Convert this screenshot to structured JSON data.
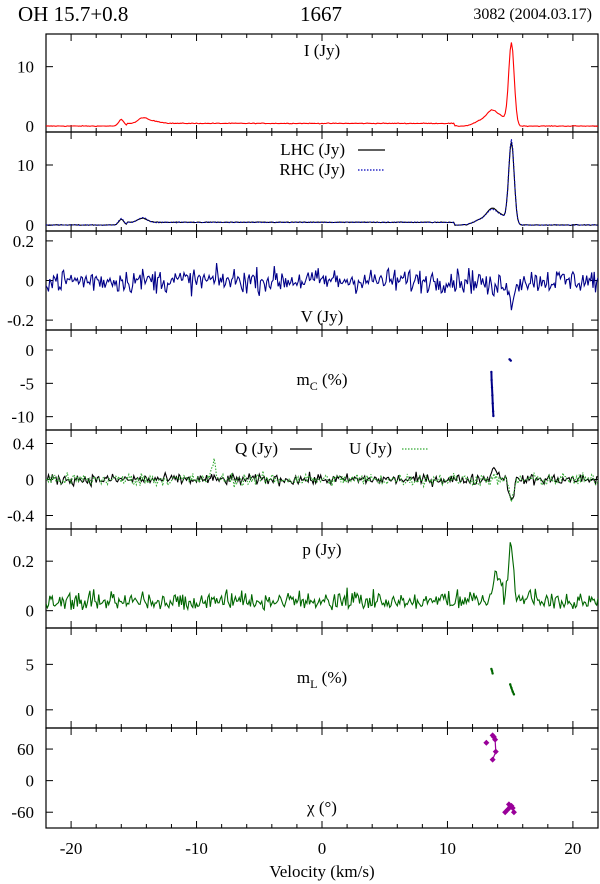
{
  "header": {
    "source": "OH 15.7+0.8",
    "frequency": "1667",
    "observation": "3082 (2004.03.17)"
  },
  "chart_data": {
    "type": "line",
    "x_axis": {
      "label": "Velocity (km/s)",
      "range": [
        -22,
        22
      ],
      "ticks": [
        -20,
        -10,
        0,
        10,
        20
      ],
      "tick_labels": [
        "-20",
        "-10",
        "0",
        "10",
        "20"
      ]
    },
    "colors": {
      "stokes_I": "#ff0000",
      "lhc": "#000000",
      "rhc": "#0000bb",
      "stokes_V": "#000088",
      "m_c": "#000088",
      "stokes_Q": "#000000",
      "stokes_U": "#33aa33",
      "p": "#006600",
      "m_l": "#006600",
      "chi": "#990099"
    },
    "panels": [
      {
        "id": "stokes-i",
        "label": "I (Jy)",
        "ylim": [
          -1,
          15.5
        ],
        "yticks": [
          0,
          10
        ],
        "ytick_labels": [
          "0",
          "10"
        ],
        "series": [
          {
            "key": "I",
            "style": "solid",
            "color_key": "stokes_I",
            "features": [
              {
                "v": 15.1,
                "amp": 14.0,
                "width": 0.22
              },
              {
                "v": 14.4,
                "amp": 1.0,
                "width": 0.3
              },
              {
                "v": 13.6,
                "amp": 2.6,
                "width": 0.45
              },
              {
                "v": 12.6,
                "amp": 0.8,
                "width": 0.5
              },
              {
                "v": -16.0,
                "amp": 1.1,
                "width": 0.2
              },
              {
                "v": -14.3,
                "amp": 0.8,
                "width": 0.35
              },
              {
                "v": -13.5,
                "amp": 0.4,
                "width": 0.6
              }
            ],
            "baseline": [
              {
                "from": -15.5,
                "to": 10.5,
                "level": 0.45
              }
            ],
            "noise": 0.06
          }
        ]
      },
      {
        "id": "lhc-rhc",
        "label": "",
        "ylim": [
          -1,
          15.5
        ],
        "yticks": [
          0,
          10
        ],
        "ytick_labels": [
          "0",
          "10"
        ],
        "legend": [
          {
            "label": "LHC (Jy)",
            "style": "solid",
            "color_key": "lhc"
          },
          {
            "label": "RHC (Jy)",
            "style": "dotted",
            "color_key": "rhc"
          }
        ],
        "series": [
          {
            "key": "LHC",
            "style": "solid",
            "color_key": "lhc",
            "features": [
              {
                "v": 15.1,
                "amp": 13.8,
                "width": 0.22
              },
              {
                "v": 14.4,
                "amp": 1.0,
                "width": 0.3
              },
              {
                "v": 13.6,
                "amp": 2.7,
                "width": 0.45
              },
              {
                "v": 12.6,
                "amp": 0.8,
                "width": 0.5
              },
              {
                "v": -16.0,
                "amp": 1.0,
                "width": 0.2
              },
              {
                "v": -14.3,
                "amp": 0.7,
                "width": 0.35
              }
            ],
            "baseline": [
              {
                "from": -15.5,
                "to": 10.5,
                "level": 0.45
              }
            ],
            "noise": 0.06
          },
          {
            "key": "RHC",
            "style": "dotted",
            "color_key": "rhc",
            "features": [
              {
                "v": 15.1,
                "amp": 14.2,
                "width": 0.22
              },
              {
                "v": 14.4,
                "amp": 1.0,
                "width": 0.3
              },
              {
                "v": 13.6,
                "amp": 2.5,
                "width": 0.45
              },
              {
                "v": 12.6,
                "amp": 0.8,
                "width": 0.5
              },
              {
                "v": -16.0,
                "amp": 1.1,
                "width": 0.2
              },
              {
                "v": -14.3,
                "amp": 0.8,
                "width": 0.35
              }
            ],
            "baseline": [
              {
                "from": -15.5,
                "to": 10.5,
                "level": 0.45
              }
            ],
            "noise": 0.06
          }
        ]
      },
      {
        "id": "stokes-v",
        "label": "V (Jy)",
        "ylim": [
          -0.25,
          0.25
        ],
        "yticks": [
          0.2,
          0,
          -0.2
        ],
        "ytick_labels": [
          "0.2",
          "0",
          "-0.2"
        ],
        "series": [
          {
            "key": "V",
            "style": "solid",
            "color_key": "stokes_V",
            "features": [
              {
                "v": 15.1,
                "amp": -0.15,
                "width": 0.15
              },
              {
                "v": 13.6,
                "amp": -0.05,
                "width": 0.4
              }
            ],
            "baseline": [],
            "noise": 0.06
          }
        ]
      },
      {
        "id": "m-c",
        "label": "m",
        "label_sub": "C",
        "label_tail": " (%)",
        "ylim": [
          -12,
          3
        ],
        "yticks": [
          0,
          -5,
          -10
        ],
        "ytick_labels": [
          "0",
          "-5",
          "-10"
        ],
        "points": [
          {
            "x": 13.5,
            "y": -3.3
          },
          {
            "x": 13.52,
            "y": -4.5
          },
          {
            "x": 13.55,
            "y": -5.6
          },
          {
            "x": 13.58,
            "y": -6.8
          },
          {
            "x": 13.61,
            "y": -8.0
          },
          {
            "x": 13.64,
            "y": -9.2
          },
          {
            "x": 13.66,
            "y": -9.9
          },
          {
            "x": 14.95,
            "y": -1.4
          },
          {
            "x": 15.05,
            "y": -1.6
          }
        ]
      },
      {
        "id": "stokes-qu",
        "label": "",
        "ylim": [
          -0.55,
          0.55
        ],
        "yticks": [
          0.4,
          0,
          -0.4
        ],
        "ytick_labels": [
          "0.4",
          "0",
          "-0.4"
        ],
        "legend": [
          {
            "label": "Q (Jy)",
            "style": "solid",
            "color_key": "stokes_Q"
          },
          {
            "label": "U (Jy)",
            "style": "dotted",
            "color_key": "stokes_U"
          }
        ],
        "series": [
          {
            "key": "Q",
            "style": "solid",
            "color_key": "stokes_Q",
            "features": [
              {
                "v": 15.1,
                "amp": -0.2,
                "width": 0.2
              },
              {
                "v": 13.8,
                "amp": 0.12,
                "width": 0.3
              }
            ],
            "baseline": [],
            "noise": 0.06
          },
          {
            "key": "U",
            "style": "dotted",
            "color_key": "stokes_U",
            "features": [
              {
                "v": 15.1,
                "amp": -0.22,
                "width": 0.2
              },
              {
                "v": -8.6,
                "amp": 0.2,
                "width": 0.15
              }
            ],
            "baseline": [],
            "noise": 0.07
          }
        ]
      },
      {
        "id": "linear-p",
        "label": "p (Jy)",
        "ylim": [
          -0.07,
          0.33
        ],
        "yticks": [
          0.2,
          0
        ],
        "ytick_labels": [
          "0.2",
          "0"
        ],
        "series": [
          {
            "key": "p",
            "style": "solid",
            "color_key": "p",
            "features": [
              {
                "v": 15.05,
                "amp": 0.24,
                "width": 0.18
              },
              {
                "v": 13.9,
                "amp": 0.1,
                "width": 0.3
              }
            ],
            "baseline": [],
            "noise": 0.05,
            "positive_offset": 0.04
          }
        ]
      },
      {
        "id": "m-l",
        "label": "m",
        "label_sub": "L",
        "label_tail": " (%)",
        "ylim": [
          -2,
          9
        ],
        "yticks": [
          5,
          0
        ],
        "ytick_labels": [
          "5",
          "0"
        ],
        "points": [
          {
            "x": 13.5,
            "y": 4.5
          },
          {
            "x": 13.55,
            "y": 4.3
          },
          {
            "x": 13.6,
            "y": 4.0
          },
          {
            "x": 15.0,
            "y": 2.8
          },
          {
            "x": 15.1,
            "y": 2.4
          },
          {
            "x": 15.2,
            "y": 2.0
          },
          {
            "x": 15.3,
            "y": 1.7
          }
        ]
      },
      {
        "id": "chi",
        "label": "χ (°)",
        "ylim": [
          -90,
          100
        ],
        "yticks": [
          60,
          0,
          -60
        ],
        "ytick_labels": [
          "60",
          "0",
          "-60"
        ],
        "markers": true,
        "segments": [
          [
            {
              "x": 13.6,
              "y": 86
            },
            {
              "x": 13.7,
              "y": 83
            },
            {
              "x": 13.8,
              "y": 78
            },
            {
              "x": 13.85,
              "y": 55
            },
            {
              "x": 13.6,
              "y": 40
            }
          ],
          [
            {
              "x": 14.8,
              "y": -55
            },
            {
              "x": 14.9,
              "y": -45
            },
            {
              "x": 15.0,
              "y": -50
            },
            {
              "x": 15.1,
              "y": -48
            },
            {
              "x": 15.2,
              "y": -52
            },
            {
              "x": 15.3,
              "y": -60
            }
          ]
        ],
        "extra_points": [
          {
            "x": 13.1,
            "y": 72
          },
          {
            "x": 14.6,
            "y": -60
          }
        ]
      }
    ]
  }
}
